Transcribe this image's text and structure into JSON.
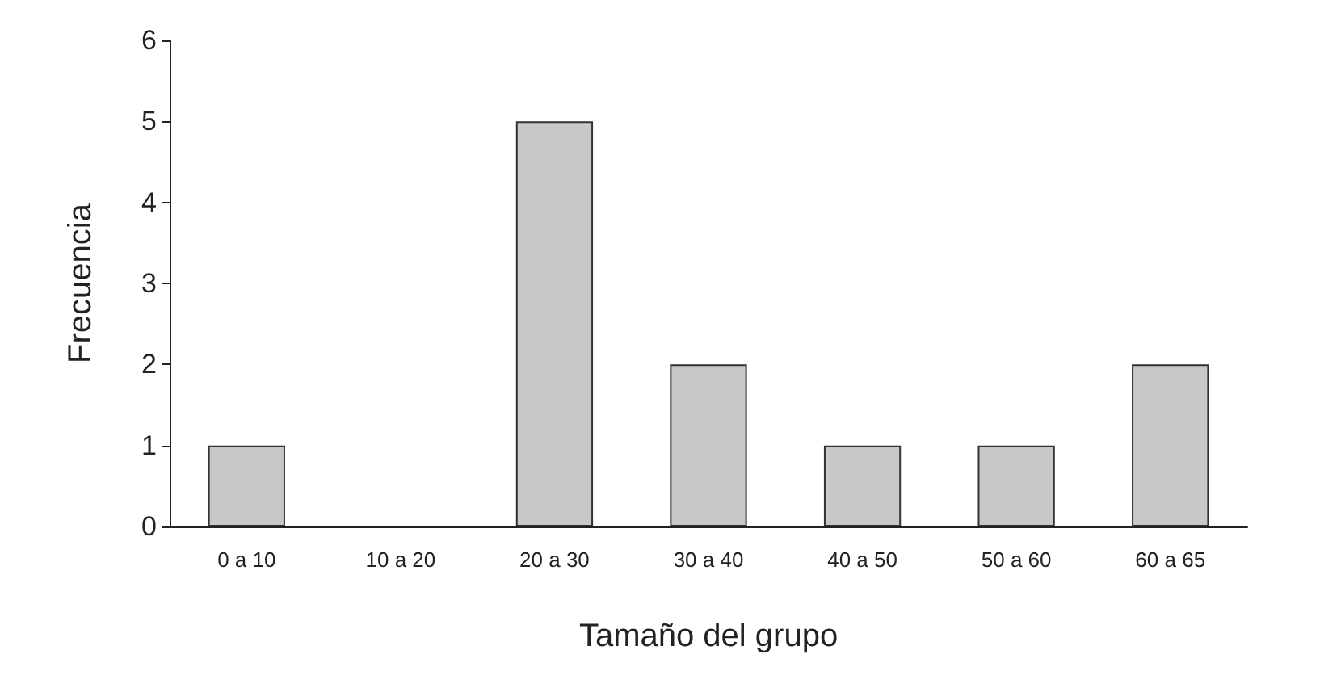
{
  "chart_data": {
    "type": "bar",
    "xlabel": "Tamaño del grupo",
    "ylabel": "Frecuencia",
    "categories": [
      "0 a 10",
      "10 a 20",
      "20 a 30",
      "30 a 40",
      "40 a 50",
      "50 a 60",
      "60 a 65"
    ],
    "values": [
      1,
      0,
      5,
      2,
      1,
      1,
      2
    ],
    "color": "#c8c8c8",
    "ylim": [
      0,
      6
    ],
    "yticks": [
      0,
      1,
      2,
      3,
      4,
      5,
      6
    ],
    "grid": false
  }
}
